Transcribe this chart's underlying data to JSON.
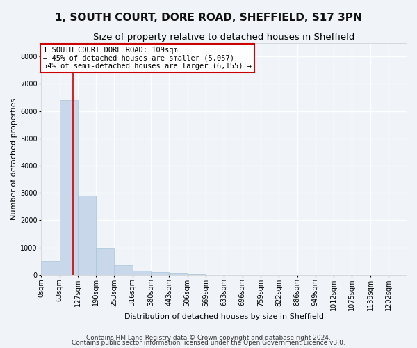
{
  "title1": "1, SOUTH COURT, DORE ROAD, SHEFFIELD, S17 3PN",
  "title2": "Size of property relative to detached houses in Sheffield",
  "xlabel": "Distribution of detached houses by size in Sheffield",
  "ylabel": "Number of detached properties",
  "bin_edges": [
    0,
    63,
    127,
    190,
    253,
    316,
    380,
    443,
    506,
    569,
    633,
    696,
    759,
    822,
    886,
    949,
    1012,
    1075,
    1139,
    1202,
    1265
  ],
  "bar_heights": [
    500,
    6400,
    2900,
    975,
    340,
    155,
    95,
    60,
    25,
    5,
    3,
    2,
    1,
    1,
    0,
    0,
    0,
    0,
    0,
    0
  ],
  "bar_color": "#c8d8ea",
  "bar_edge_color": "#a8c4d8",
  "property_size": 109,
  "vline_color": "#cc0000",
  "annotation_text": "1 SOUTH COURT DORE ROAD: 109sqm\n← 45% of detached houses are smaller (5,057)\n54% of semi-detached houses are larger (6,155) →",
  "annotation_box_color": "#ffffff",
  "annotation_box_edge_color": "#cc0000",
  "ylim": [
    0,
    8500
  ],
  "yticks": [
    0,
    1000,
    2000,
    3000,
    4000,
    5000,
    6000,
    7000,
    8000
  ],
  "footer1": "Contains HM Land Registry data © Crown copyright and database right 2024.",
  "footer2": "Contains public sector information licensed under the Open Government Licence v3.0.",
  "background_color": "#f0f4f8",
  "grid_color": "#ffffff",
  "title1_fontsize": 11,
  "title2_fontsize": 9.5,
  "xlabel_fontsize": 8,
  "ylabel_fontsize": 8,
  "tick_fontsize": 7,
  "annotation_fontsize": 7.5,
  "footer_fontsize": 6.5
}
